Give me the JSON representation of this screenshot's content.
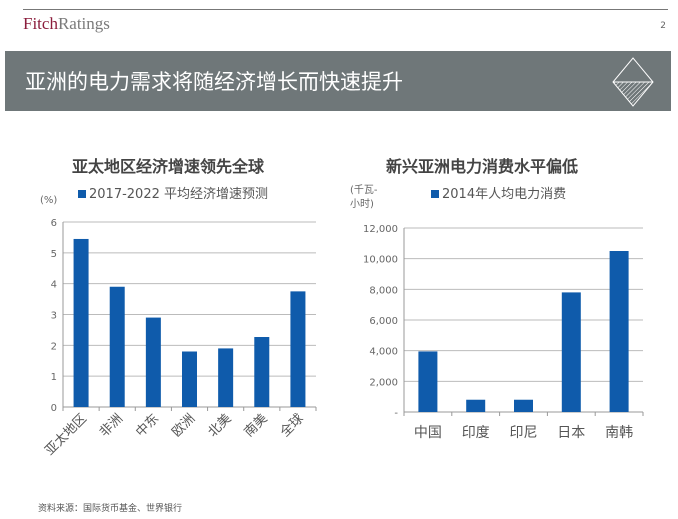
{
  "header": {
    "logo_part1": "Fitch",
    "logo_part2": "Ratings",
    "page_number": "2"
  },
  "banner": {
    "title": "亚洲的电力需求将随经济增长而快速提升",
    "icon": "diamond-logo-icon"
  },
  "colors": {
    "bar": "#0f5bab",
    "banner": "#6f7779"
  },
  "chart_data": [
    {
      "type": "bar",
      "title": "亚太地区经济增速领先全球",
      "legend_position": "top",
      "unit": "(%)",
      "series": [
        {
          "name": "2017-2022 平均经济增速预测",
          "values": [
            5.45,
            3.9,
            2.9,
            1.8,
            1.9,
            2.27,
            3.75
          ]
        }
      ],
      "categories": [
        "亚太地区",
        "非洲",
        "中东",
        "欧洲",
        "北美",
        "南美",
        "全球"
      ],
      "ylim": [
        0,
        6
      ],
      "yticks": [
        "0",
        "1",
        "2",
        "3",
        "4",
        "5",
        "6"
      ],
      "grid": true
    },
    {
      "type": "bar",
      "title": "新兴亚洲电力消费水平偏低",
      "legend_position": "top",
      "unit_line1": "(千瓦-",
      "unit_line2": "小时)",
      "series": [
        {
          "name": "2014年人均电力消费",
          "values": [
            3950,
            800,
            800,
            7800,
            10500
          ]
        }
      ],
      "categories": [
        "中国",
        "印度",
        "印尼",
        "日本",
        "南韩"
      ],
      "ylim": [
        0,
        12000
      ],
      "yticks": [
        "-",
        "2,000",
        "4,000",
        "6,000",
        "8,000",
        "10,000",
        "12,000"
      ],
      "grid": true
    }
  ],
  "footer": {
    "source": "资料来源：国际货币基金、世界银行"
  }
}
